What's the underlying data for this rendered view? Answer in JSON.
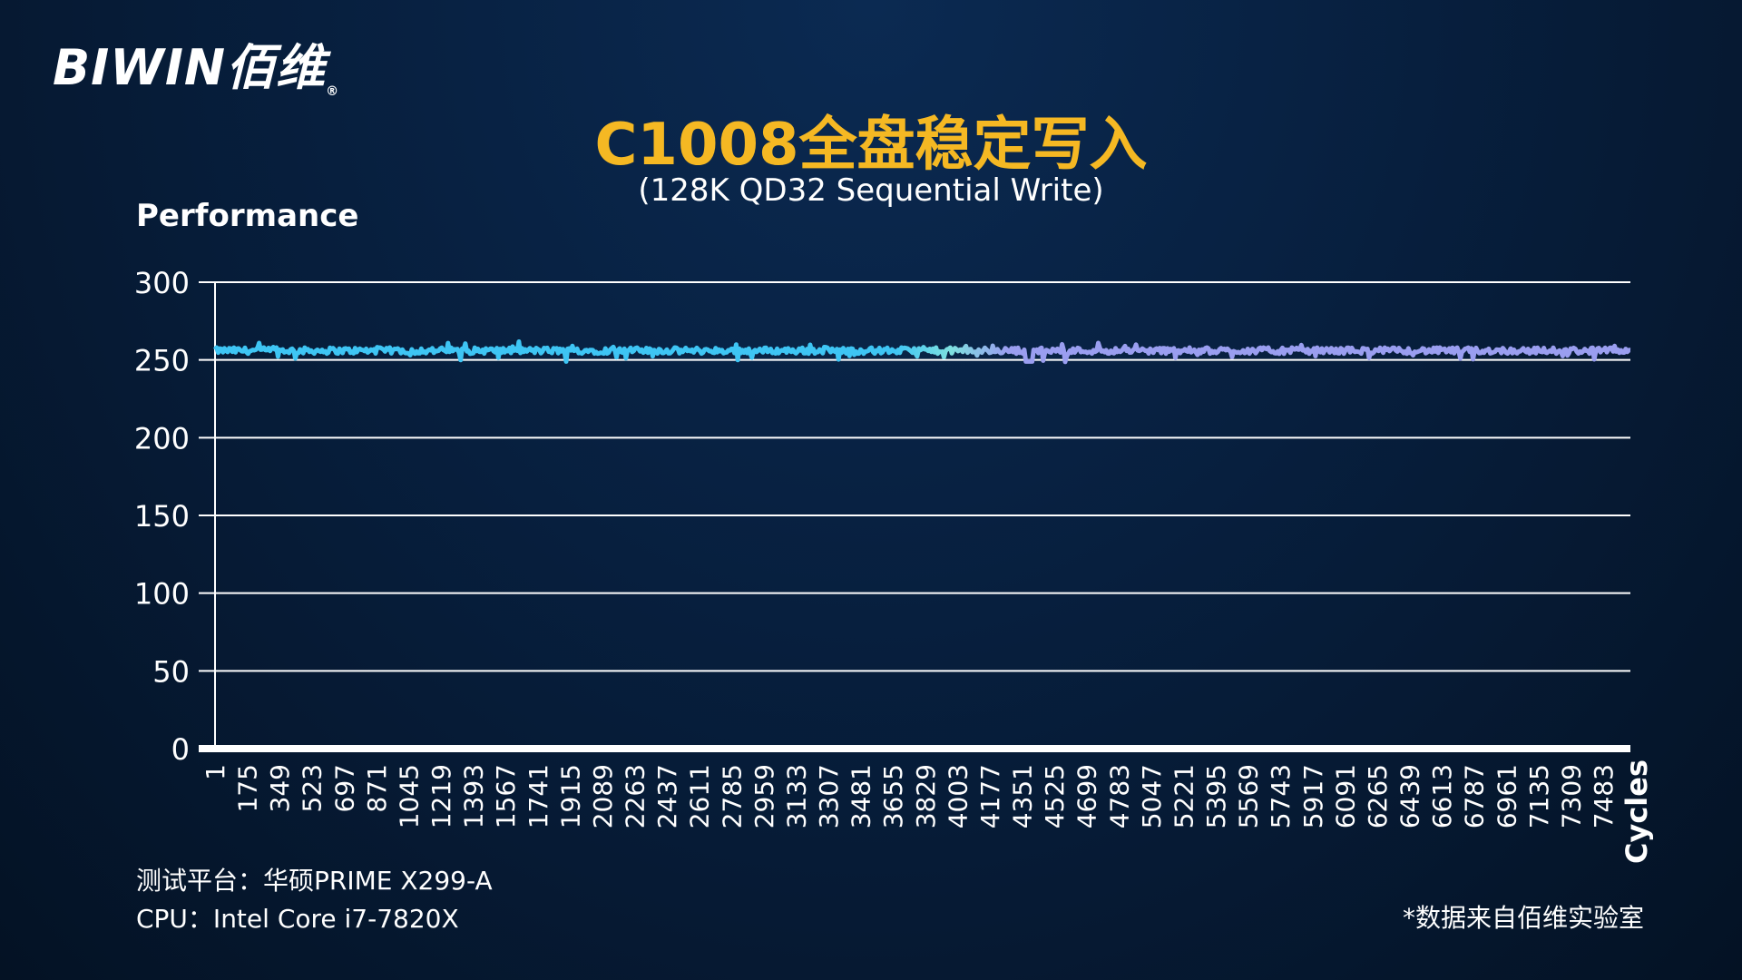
{
  "brand": {
    "logo_text": "BIWIN佰维",
    "reg_mark": "®"
  },
  "footer": {
    "platform": "测试平台：华硕PRIME X299-A",
    "cpu": "CPU：Intel Core i7-7820X",
    "source_note": "*数据来自佰维实验室"
  },
  "chart_data": {
    "type": "line",
    "title": "C1008全盘稳定写入",
    "subtitle": "(128K QD32 Sequential Write)",
    "ylabel": "Performance",
    "xlabel": "Cycles",
    "ylim": [
      0,
      300
    ],
    "yticks": [
      0,
      50,
      100,
      150,
      200,
      250,
      300
    ],
    "xticks": [
      1,
      175,
      349,
      523,
      697,
      871,
      1045,
      1219,
      1393,
      1567,
      1741,
      1915,
      2089,
      2263,
      2437,
      2611,
      2785,
      2959,
      3133,
      3307,
      3481,
      3655,
      3829,
      4003,
      4177,
      4351,
      4525,
      4699,
      4783,
      5047,
      5221,
      5395,
      5569,
      5743,
      5917,
      6091,
      6265,
      6439,
      6613,
      6787,
      6961,
      7135,
      7309,
      7483
    ],
    "xlim": [
      1,
      7560
    ],
    "grid": true,
    "colors": {
      "series_start": "#3ec5f4",
      "series_mid": "#7ee0e0",
      "series_end": "#9a9ef0",
      "title": "#f5b823"
    },
    "series": [
      {
        "values_summary": "approx 256 ± 3 across all cycles",
        "baseline": 256
      }
    ]
  }
}
